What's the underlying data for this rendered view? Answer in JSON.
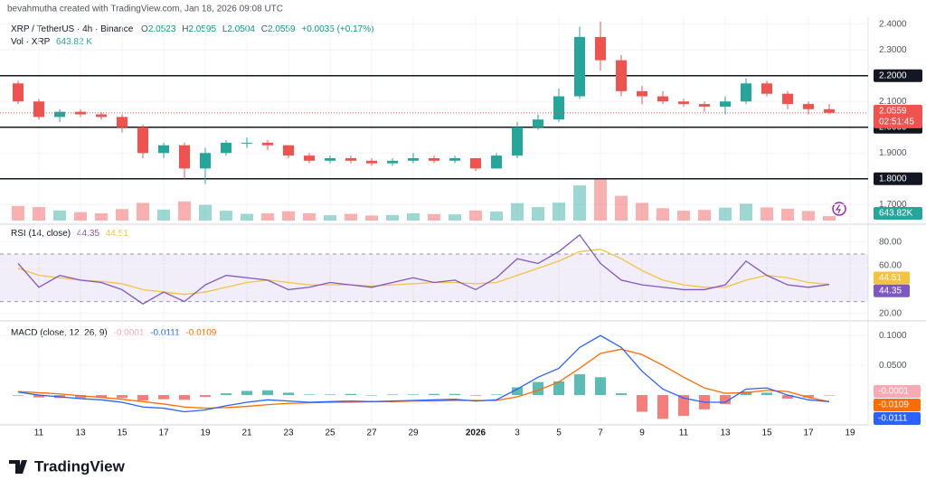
{
  "header": {
    "author_line": "bevahmutha created with TradingView.com, Jan 18, 2026 09:08 UTC",
    "ohlc": [
      {
        "key": "O",
        "value": "2.0523"
      },
      {
        "key": "H",
        "value": "2.0595"
      },
      {
        "key": "L",
        "value": "2.0504"
      },
      {
        "key": "C",
        "value": "2.0559"
      }
    ],
    "change": "+0.0035 (+0.17%)",
    "vol_label": "Vol · XRP",
    "vol_value": "643.82 K",
    "vol_axis_label": "643.82K",
    "logo": "TradingView"
  },
  "chart_data": [
    {
      "type": "candlestick",
      "title": "XRP / TetherUS · 4h · Binance",
      "categories": [
        null,
        "11",
        null,
        "13",
        null,
        "15",
        null,
        "17",
        null,
        "19",
        null,
        "21",
        null,
        "23",
        null,
        "25",
        null,
        "27",
        null,
        "29",
        null,
        null,
        "2026",
        null,
        "3",
        null,
        "5",
        null,
        "7",
        null,
        "9",
        null,
        "11",
        null,
        "13",
        null,
        "15",
        null,
        "17",
        null,
        "19"
      ],
      "open": [
        2.17,
        2.1,
        2.04,
        2.06,
        2.05,
        2.04,
        2.0,
        1.9,
        1.93,
        1.84,
        1.9,
        1.94,
        1.94,
        1.93,
        1.89,
        1.87,
        1.88,
        1.87,
        1.86,
        1.87,
        1.88,
        1.87,
        1.88,
        1.84,
        1.89,
        2.0,
        2.03,
        2.12,
        2.35,
        2.26,
        2.14,
        2.12,
        2.1,
        2.09,
        2.08,
        2.1,
        2.17,
        2.13,
        2.09,
        2.07,
        null
      ],
      "high": [
        2.18,
        2.11,
        2.07,
        2.07,
        2.06,
        2.05,
        2.01,
        1.94,
        1.94,
        1.92,
        1.95,
        1.96,
        1.95,
        1.93,
        1.9,
        1.89,
        1.89,
        1.88,
        1.88,
        1.9,
        1.89,
        1.89,
        1.88,
        1.9,
        2.02,
        2.05,
        2.15,
        2.39,
        2.41,
        2.28,
        2.16,
        2.14,
        2.11,
        2.1,
        2.12,
        2.19,
        2.18,
        2.14,
        2.1,
        2.09,
        null
      ],
      "low": [
        2.09,
        2.03,
        2.02,
        2.04,
        2.03,
        1.98,
        1.88,
        1.88,
        1.8,
        1.78,
        1.89,
        1.92,
        1.91,
        1.88,
        1.86,
        1.86,
        1.86,
        1.85,
        1.85,
        1.86,
        1.86,
        1.86,
        1.83,
        1.84,
        1.88,
        1.99,
        2.02,
        2.11,
        2.22,
        2.12,
        2.09,
        2.09,
        2.08,
        2.06,
        2.05,
        2.09,
        2.12,
        2.07,
        2.05,
        2.05,
        null
      ],
      "close": [
        2.1,
        2.04,
        2.06,
        2.05,
        2.04,
        2.0,
        1.9,
        1.93,
        1.84,
        1.9,
        1.94,
        1.94,
        1.93,
        1.89,
        1.87,
        1.88,
        1.87,
        1.86,
        1.87,
        1.88,
        1.87,
        1.88,
        1.84,
        1.89,
        2.0,
        2.03,
        2.12,
        2.35,
        2.26,
        2.14,
        2.12,
        2.1,
        2.09,
        2.08,
        2.1,
        2.17,
        2.13,
        2.09,
        2.07,
        2.0559,
        null
      ],
      "volume": [
        5200,
        4800,
        3600,
        3000,
        2600,
        4100,
        6300,
        3900,
        6800,
        5600,
        3500,
        2400,
        2600,
        3300,
        2600,
        1900,
        2400,
        1800,
        2000,
        2600,
        2300,
        2200,
        3600,
        3200,
        6200,
        4800,
        6400,
        12500,
        14800,
        8800,
        6300,
        4400,
        3500,
        3800,
        4600,
        6000,
        4700,
        4200,
        3400,
        1600,
        null
      ],
      "up_color": "#26a69a",
      "down_color": "#ef5350",
      "ylim": [
        1.68,
        2.42
      ],
      "yticks": [
        {
          "value": 1.7,
          "label": "1.7000"
        },
        {
          "value": 1.9,
          "label": "1.9000"
        },
        {
          "value": 2.1,
          "label": "2.1000"
        },
        {
          "value": 2.3,
          "label": "2.3000"
        },
        {
          "value": 2.4,
          "label": "2.4000"
        }
      ],
      "levels": [
        {
          "value": 2.2,
          "label": "2.2000"
        },
        {
          "value": 2.0,
          "label": "2.0000"
        },
        {
          "value": 1.8,
          "label": "1.8000"
        }
      ],
      "countdown": "02:51:45"
    },
    {
      "type": "rsi",
      "title": "RSI (14, close)",
      "series": [
        {
          "color": "#7e57c2",
          "values": [
            62,
            42,
            52,
            48,
            46,
            40,
            28,
            38,
            30,
            44,
            52,
            50,
            48,
            40,
            42,
            46,
            44,
            42,
            46,
            50,
            46,
            48,
            40,
            50,
            66,
            62,
            72,
            86,
            62,
            48,
            44,
            42,
            40,
            40,
            44,
            64,
            52,
            44,
            42,
            44.35,
            null
          ]
        },
        {
          "color": "#f5c242",
          "values": [
            58,
            52,
            50,
            48,
            47,
            45,
            40,
            38,
            36,
            38,
            42,
            46,
            48,
            46,
            44,
            44,
            44,
            43,
            44,
            45,
            46,
            46,
            45,
            46,
            52,
            58,
            64,
            72,
            74,
            66,
            56,
            48,
            44,
            42,
            42,
            48,
            52,
            50,
            46,
            44.51,
            null
          ]
        }
      ],
      "ylim": [
        16,
        92
      ],
      "yticks": [
        {
          "value": 20,
          "label": "20.00"
        },
        {
          "value": 40,
          "label": "40.00"
        },
        {
          "value": 60,
          "label": "60.00"
        },
        {
          "value": 80,
          "label": "80.00"
        }
      ],
      "band": [
        30,
        70
      ],
      "band_color": "#7e57c2"
    },
    {
      "type": "macd",
      "title": "MACD (close, 12, 26, 9)",
      "series": [
        {
          "color": "#f7a9b4",
          "values": [
            -0.001,
            -0.004,
            -0.005,
            -0.005,
            -0.004,
            -0.005,
            -0.009,
            -0.007,
            -0.008,
            -0.003,
            0.003,
            0.007,
            0.008,
            0.004,
            0.001,
            0.001,
            0.002,
            0,
            0.001,
            0.001,
            0.002,
            0.002,
            -0.001,
            0.001,
            0.013,
            0.022,
            0.023,
            0.035,
            0.03,
            0.003,
            -0.028,
            -0.04,
            -0.035,
            -0.024,
            -0.015,
            0.006,
            0.004,
            -0.006,
            -0.004,
            -0.0001,
            null
          ]
        },
        {
          "color": "#2962ff",
          "values": [
            0.005,
            0,
            -0.003,
            -0.006,
            -0.008,
            -0.012,
            -0.02,
            -0.022,
            -0.028,
            -0.025,
            -0.018,
            -0.012,
            -0.008,
            -0.01,
            -0.012,
            -0.011,
            -0.01,
            -0.011,
            -0.01,
            -0.009,
            -0.008,
            -0.007,
            -0.01,
            -0.008,
            0.01,
            0.03,
            0.045,
            0.08,
            0.1,
            0.08,
            0.04,
            0.01,
            -0.005,
            -0.012,
            -0.012,
            0.01,
            0.012,
            0,
            -0.008,
            -0.0111,
            null
          ]
        },
        {
          "color": "#ff6d00",
          "values": [
            0.006,
            0.004,
            0.002,
            -0.001,
            -0.004,
            -0.007,
            -0.011,
            -0.015,
            -0.02,
            -0.022,
            -0.021,
            -0.019,
            -0.016,
            -0.014,
            -0.013,
            -0.012,
            -0.012,
            -0.011,
            -0.011,
            -0.01,
            -0.01,
            -0.009,
            -0.009,
            -0.009,
            -0.003,
            0.008,
            0.022,
            0.045,
            0.07,
            0.077,
            0.068,
            0.05,
            0.03,
            0.012,
            0.003,
            0.004,
            0.008,
            0.006,
            -0.004,
            -0.0109,
            null
          ]
        }
      ],
      "ylim": [
        -0.05,
        0.12
      ],
      "yticks": [
        {
          "value": 0.05,
          "label": "0.0500"
        },
        {
          "value": 0.1,
          "label": "0.1000"
        }
      ]
    }
  ]
}
